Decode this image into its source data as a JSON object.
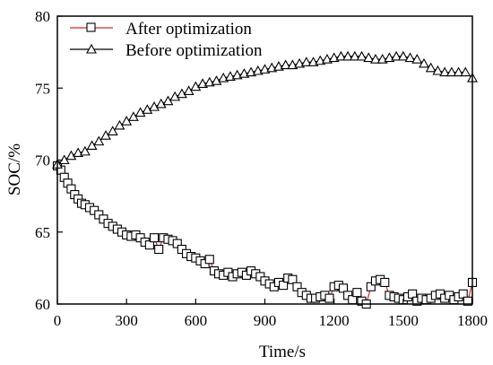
{
  "chart_data": {
    "type": "line",
    "xlabel": "Time/s",
    "ylabel": "SOC/%",
    "xlim": [
      0,
      1800
    ],
    "ylim": [
      60,
      80
    ],
    "xticks": [
      0,
      300,
      600,
      900,
      1200,
      1500,
      1800
    ],
    "yticks": [
      60,
      65,
      70,
      75,
      80
    ],
    "grid": false,
    "legend_position": "top-left",
    "series": [
      {
        "name": "After optimization",
        "marker": "square",
        "line_color": "#d62728",
        "marker_color": "#000000",
        "x": [
          0,
          15,
          30,
          45,
          60,
          75,
          90,
          105,
          120,
          140,
          160,
          180,
          200,
          220,
          240,
          260,
          280,
          300,
          320,
          340,
          360,
          380,
          400,
          420,
          440,
          460,
          480,
          500,
          520,
          540,
          560,
          580,
          600,
          620,
          640,
          660,
          680,
          700,
          720,
          740,
          760,
          780,
          800,
          820,
          840,
          860,
          880,
          900,
          920,
          940,
          960,
          980,
          1000,
          1020,
          1040,
          1060,
          1080,
          1100,
          1120,
          1140,
          1160,
          1180,
          1200,
          1220,
          1240,
          1260,
          1280,
          1300,
          1320,
          1340,
          1360,
          1380,
          1400,
          1420,
          1440,
          1460,
          1480,
          1500,
          1520,
          1540,
          1560,
          1580,
          1600,
          1620,
          1640,
          1660,
          1680,
          1700,
          1720,
          1740,
          1760,
          1780,
          1800
        ],
        "y": [
          69.6,
          69.3,
          68.8,
          68.4,
          68.0,
          67.6,
          67.3,
          67.0,
          66.9,
          66.7,
          66.5,
          66.2,
          65.9,
          65.6,
          65.4,
          65.2,
          65.0,
          64.8,
          64.7,
          64.8,
          64.6,
          64.3,
          64.1,
          64.6,
          63.8,
          64.6,
          64.5,
          64.4,
          64.2,
          63.8,
          63.5,
          63.3,
          63.2,
          63.0,
          62.8,
          63.1,
          62.3,
          62.1,
          62.0,
          62.2,
          61.9,
          62.1,
          62.2,
          62.0,
          62.3,
          62.1,
          61.9,
          61.6,
          61.4,
          61.2,
          61.5,
          61.3,
          61.8,
          61.7,
          61.2,
          60.8,
          60.6,
          60.4,
          60.4,
          60.5,
          60.6,
          60.4,
          61.2,
          61.3,
          61.1,
          60.6,
          60.3,
          60.8,
          60.2,
          60.0,
          61.2,
          61.6,
          61.7,
          61.5,
          60.6,
          60.5,
          60.4,
          60.3,
          60.5,
          60.7,
          60.2,
          60.4,
          60.3,
          60.4,
          60.6,
          60.7,
          60.4,
          60.6,
          60.3,
          60.5,
          60.7,
          60.2,
          61.5
        ]
      },
      {
        "name": "Before optimization",
        "marker": "triangle",
        "line_color": "#000000",
        "marker_color": "#000000",
        "x": [
          0,
          30,
          60,
          90,
          120,
          150,
          180,
          210,
          240,
          270,
          300,
          330,
          360,
          390,
          420,
          450,
          480,
          510,
          540,
          570,
          600,
          630,
          660,
          690,
          720,
          750,
          780,
          810,
          840,
          870,
          900,
          930,
          960,
          990,
          1020,
          1050,
          1080,
          1110,
          1140,
          1170,
          1200,
          1230,
          1260,
          1290,
          1320,
          1350,
          1380,
          1410,
          1440,
          1470,
          1500,
          1530,
          1560,
          1590,
          1620,
          1650,
          1680,
          1710,
          1740,
          1770,
          1800
        ],
        "y": [
          69.7,
          70.0,
          70.3,
          70.5,
          70.6,
          71.0,
          71.3,
          71.7,
          72.0,
          72.4,
          72.7,
          73.0,
          73.3,
          73.5,
          73.7,
          73.9,
          74.1,
          74.4,
          74.6,
          74.8,
          75.1,
          75.3,
          75.4,
          75.5,
          75.7,
          75.8,
          75.9,
          76.0,
          76.1,
          76.2,
          76.3,
          76.4,
          76.5,
          76.6,
          76.6,
          76.7,
          76.8,
          76.8,
          76.9,
          77.0,
          77.1,
          77.2,
          77.2,
          77.2,
          77.2,
          77.1,
          77.0,
          77.0,
          77.1,
          77.2,
          77.2,
          77.1,
          77.0,
          76.7,
          76.4,
          76.2,
          76.1,
          76.1,
          76.1,
          76.1,
          75.7
        ]
      }
    ]
  }
}
